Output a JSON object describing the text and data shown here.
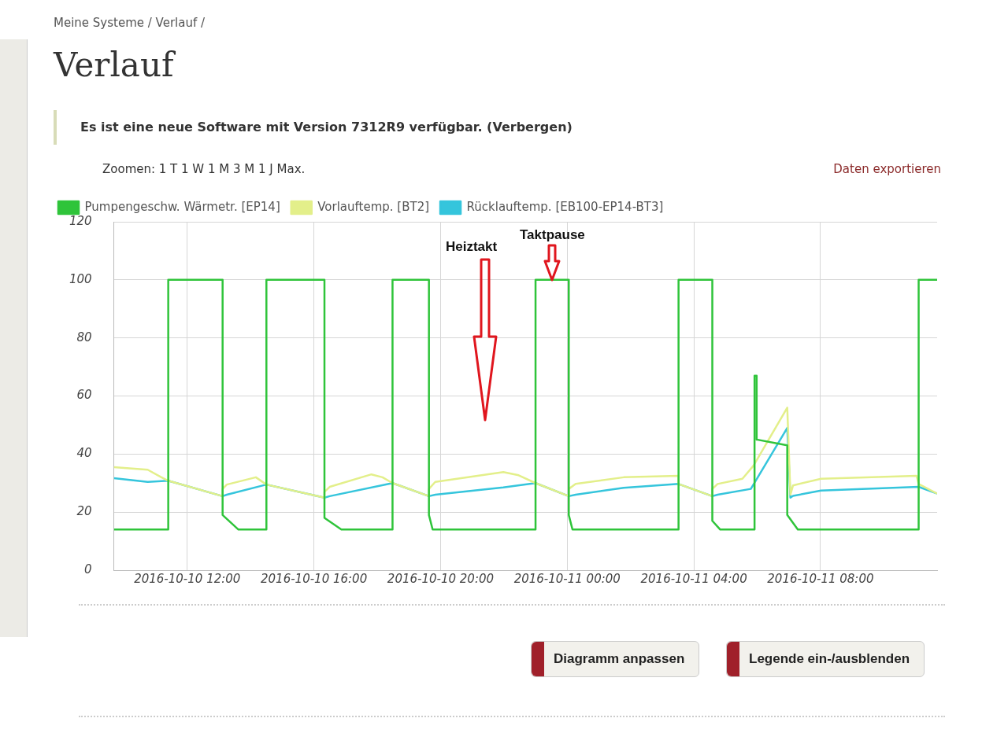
{
  "chart_data": {
    "type": "line",
    "title": "Verlauf",
    "annotations": [
      "Meine Systeme / Verlauf /",
      "Es ist eine neue Software mit Version 7312R9 verfügbar. (Verbergen)",
      "Zoomen: 1 T 1 W 1 M 3 M 1 J Max.",
      "Daten exportieren",
      "Diagramm anpassen",
      "Legende ein-/ausblenden",
      "Heiztakt",
      "Taktpause"
    ],
    "series": [
      {
        "name": "Pumpengeschw. Wärmetr. [EP14]",
        "color": "#2fc43a",
        "x": [
          "2016-10-10T09:41",
          "2016-10-10T11:24",
          "2016-10-10T11:24",
          "2016-10-10T13:07",
          "2016-10-10T13:07",
          "2016-10-10T13:37",
          "2016-10-10T14:30",
          "2016-10-10T14:30",
          "2016-10-10T16:20",
          "2016-10-10T16:20",
          "2016-10-10T16:52",
          "2016-10-10T18:29",
          "2016-10-10T18:29",
          "2016-10-10T19:38",
          "2016-10-10T19:38",
          "2016-10-10T19:45",
          "2016-10-10T23:00",
          "2016-10-10T23:00",
          "2016-10-11T00:03",
          "2016-10-11T00:03",
          "2016-10-11T00:10",
          "2016-10-11T03:31",
          "2016-10-11T03:31",
          "2016-10-11T04:35",
          "2016-10-11T04:35",
          "2016-10-11T04:50",
          "2016-10-11T05:55",
          "2016-10-11T05:55",
          "2016-10-11T05:59",
          "2016-10-11T05:59",
          "2016-10-11T06:57",
          "2016-10-11T06:57",
          "2016-10-11T07:17",
          "2016-10-11T11:06",
          "2016-10-11T11:06",
          "2016-10-11T11:41"
        ],
        "values": [
          14,
          14,
          100,
          100,
          19,
          14,
          14,
          100,
          100,
          18,
          14,
          14,
          100,
          100,
          19,
          14,
          14,
          100,
          100,
          19,
          14,
          14,
          100,
          100,
          17,
          14,
          14,
          67,
          67,
          45,
          43,
          19,
          14,
          14,
          100,
          100
        ]
      },
      {
        "name": "Vorlauftemp. [BT2]",
        "color": "#e3ef8a",
        "x": [
          "2016-10-10T09:41",
          "2016-10-10T10:45",
          "2016-10-10T11:11",
          "2016-10-10T11:24",
          "2016-10-10T13:07",
          "2016-10-10T13:07",
          "2016-10-10T13:15",
          "2016-10-10T14:10",
          "2016-10-10T14:30",
          "2016-10-10T16:20",
          "2016-10-10T16:20",
          "2016-10-10T16:30",
          "2016-10-10T17:49",
          "2016-10-10T18:10",
          "2016-10-10T18:29",
          "2016-10-10T19:38",
          "2016-10-10T19:38",
          "2016-10-10T19:50",
          "2016-10-10T21:59",
          "2016-10-10T22:28",
          "2016-10-10T23:00",
          "2016-10-11T00:03",
          "2016-10-11T00:03",
          "2016-10-11T00:16",
          "2016-10-11T01:47",
          "2016-10-11T03:31",
          "2016-10-11T03:31",
          "2016-10-11T04:35",
          "2016-10-11T04:35",
          "2016-10-11T04:45",
          "2016-10-11T05:32",
          "2016-10-11T05:53",
          "2016-10-11T06:57",
          "2016-10-11T07:03",
          "2016-10-11T07:08",
          "2016-10-11T08:01",
          "2016-10-11T11:02",
          "2016-10-11T11:06",
          "2016-10-11T11:41"
        ],
        "values": [
          35.5,
          34.6,
          32,
          30.8,
          25.5,
          28,
          29.5,
          32,
          29.5,
          25,
          27,
          28.7,
          33,
          32,
          30,
          25.5,
          28,
          30.4,
          33.8,
          32.7,
          30,
          25.5,
          28,
          29.7,
          32,
          32.5,
          29.7,
          25.5,
          28,
          29.7,
          31.5,
          36,
          56,
          26,
          29.2,
          31.5,
          32.5,
          29.7,
          26.4
        ]
      },
      {
        "name": "Rücklauftemp. [EB100-EP14-BT3]",
        "color": "#35c5dc",
        "x": [
          "2016-10-10T09:41",
          "2016-10-10T10:45",
          "2016-10-10T11:24",
          "2016-10-10T13:07",
          "2016-10-10T13:15",
          "2016-10-10T14:30",
          "2016-10-10T16:20",
          "2016-10-10T16:30",
          "2016-10-10T18:29",
          "2016-10-10T19:38",
          "2016-10-10T19:50",
          "2016-10-10T21:59",
          "2016-10-10T23:00",
          "2016-10-11T00:03",
          "2016-10-11T00:16",
          "2016-10-11T01:47",
          "2016-10-11T03:31",
          "2016-10-11T04:35",
          "2016-10-11T04:45",
          "2016-10-11T05:48",
          "2016-10-11T06:57",
          "2016-10-11T07:03",
          "2016-10-11T07:08",
          "2016-10-11T08:01",
          "2016-10-11T11:06",
          "2016-10-11T11:41"
        ],
        "values": [
          31.7,
          30.4,
          30.8,
          25.5,
          26,
          29.5,
          25,
          25.5,
          30,
          25.5,
          26,
          28.5,
          30,
          25.5,
          26,
          28.4,
          29.7,
          25.5,
          26,
          28,
          49,
          25,
          25.6,
          27.4,
          28.7,
          26.4
        ]
      }
    ],
    "xlim": [
      "2016-10-10T09:41",
      "2016-10-11T11:41"
    ],
    "xticks": [
      {
        "value": "2016-10-10T12:00",
        "label": "2016-10-10 12:00"
      },
      {
        "value": "2016-10-10T16:00",
        "label": "2016-10-10 16:00"
      },
      {
        "value": "2016-10-10T20:00",
        "label": "2016-10-10 20:00"
      },
      {
        "value": "2016-10-11T00:00",
        "label": "2016-10-11 00:00"
      },
      {
        "value": "2016-10-11T04:00",
        "label": "2016-10-11 04:00"
      },
      {
        "value": "2016-10-11T08:00",
        "label": "2016-10-11 08:00"
      }
    ],
    "ylim": [
      0,
      120
    ],
    "yticks": [
      0,
      20,
      40,
      60,
      80,
      100,
      120
    ],
    "grid": true,
    "legend": "top left",
    "marker": "none",
    "line_style": "solid"
  }
}
